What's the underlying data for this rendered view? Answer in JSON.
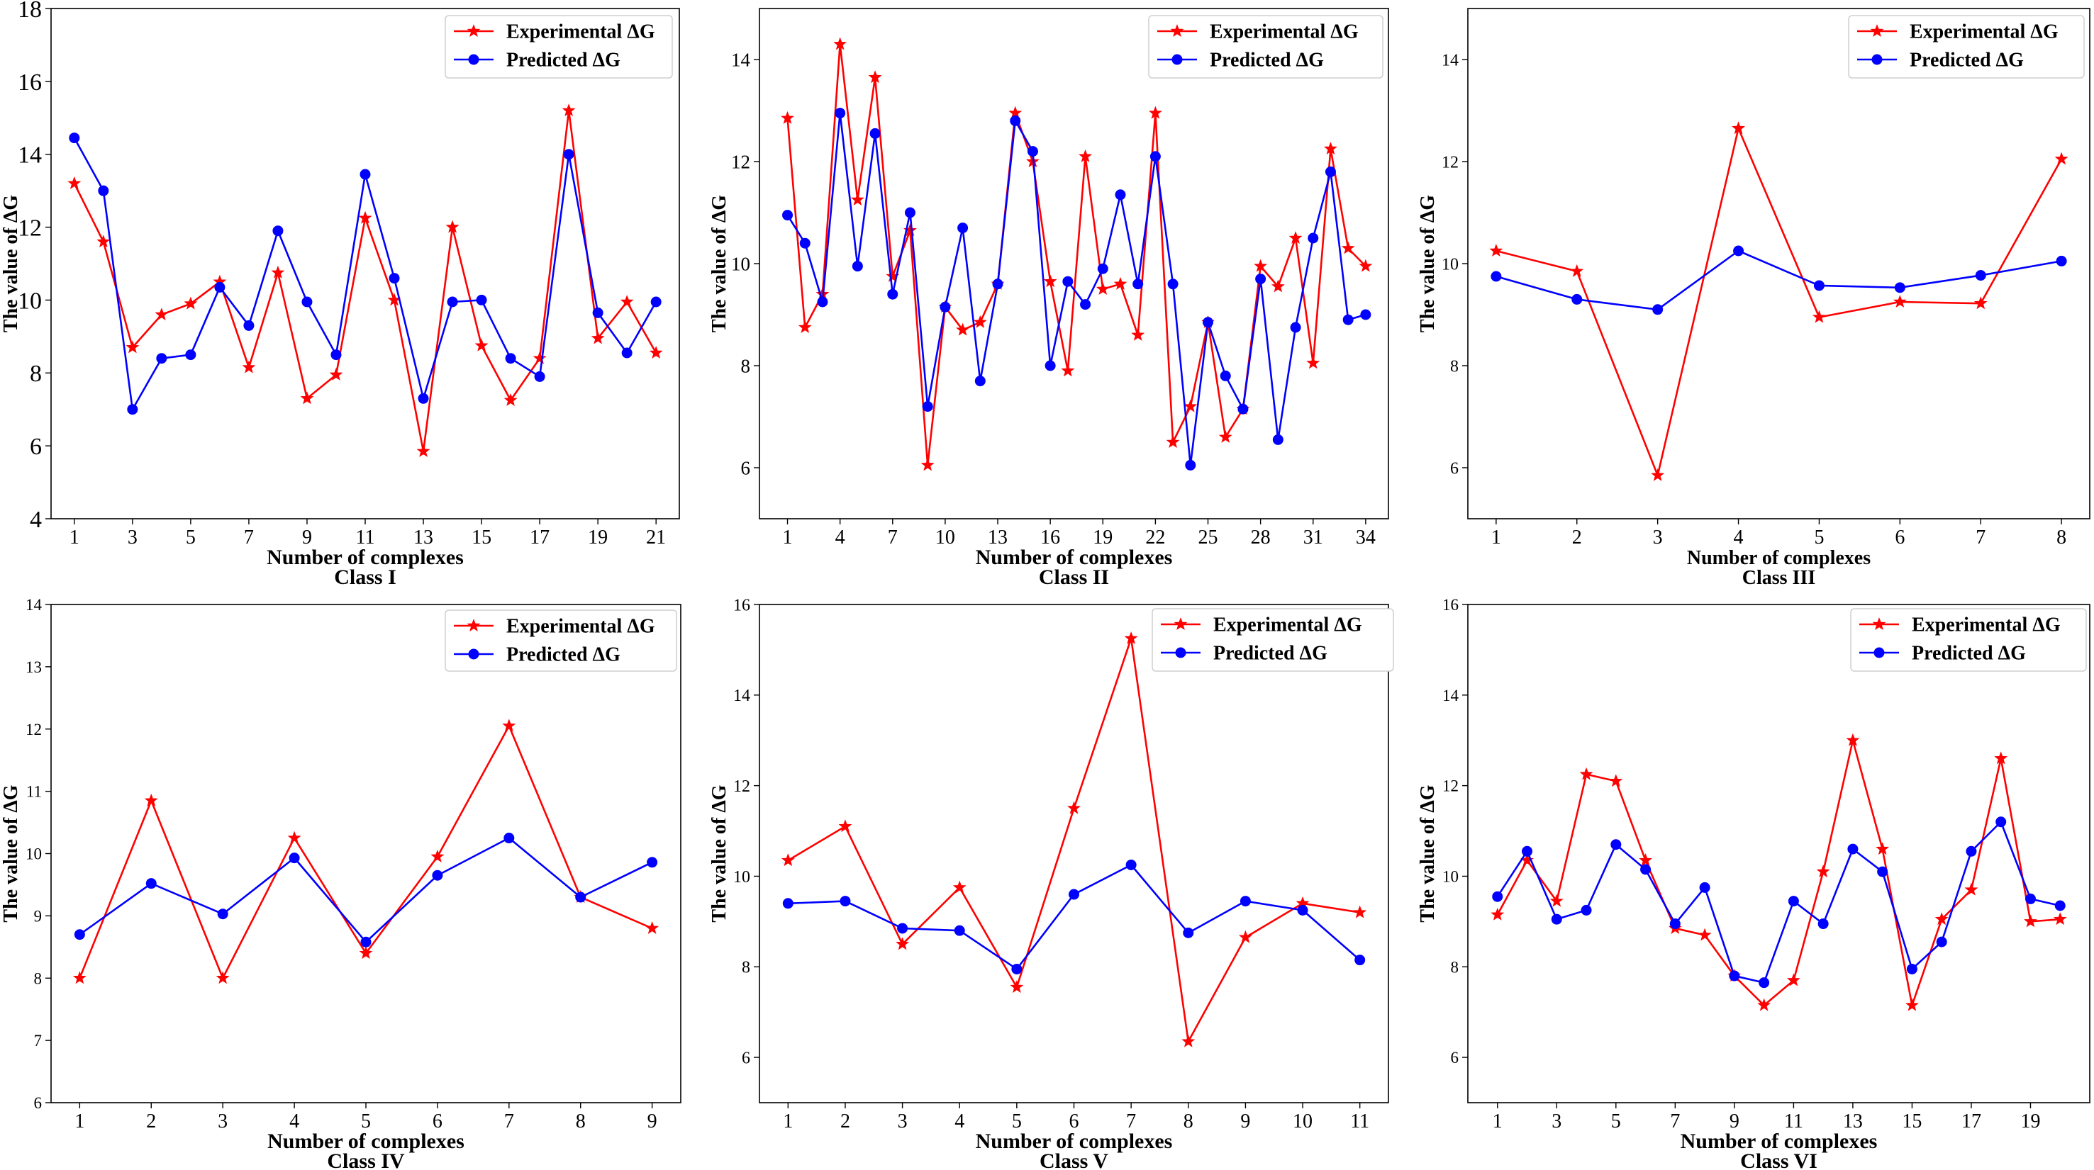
{
  "chart_data": [
    {
      "type": "line",
      "title": "Class I",
      "xlabel": "Number of complexes",
      "ylabel": "The value of ΔG",
      "ylim": [
        4,
        18
      ],
      "xlim": [
        0.2,
        21.8
      ],
      "yticks": [
        4,
        6,
        8,
        10,
        12,
        14,
        16,
        18
      ],
      "xticks": [
        1,
        3,
        5,
        7,
        9,
        11,
        13,
        15,
        17,
        19,
        21
      ],
      "x": [
        1,
        2,
        3,
        4,
        5,
        6,
        7,
        8,
        9,
        10,
        11,
        12,
        13,
        14,
        15,
        16,
        17,
        18,
        19,
        20,
        21
      ],
      "series": [
        {
          "name": "Experimental ΔG",
          "color": "#ff0000",
          "marker": "star",
          "values": [
            13.2,
            11.6,
            8.7,
            9.6,
            9.9,
            10.5,
            8.15,
            10.75,
            7.3,
            7.95,
            12.25,
            10.0,
            5.85,
            12.0,
            8.75,
            7.25,
            8.4,
            15.2,
            8.95,
            9.95,
            8.55
          ]
        },
        {
          "name": "Predicted ΔG",
          "color": "#0000ff",
          "marker": "circle",
          "values": [
            14.45,
            13.0,
            7.0,
            8.4,
            8.5,
            10.35,
            9.3,
            11.9,
            9.95,
            8.5,
            13.45,
            10.6,
            7.3,
            9.95,
            10.0,
            8.4,
            7.9,
            14.0,
            9.65,
            8.55,
            9.95
          ]
        }
      ]
    },
    {
      "type": "line",
      "title": "Class II",
      "xlabel": "Number of complexes",
      "ylabel": "The value of ΔG",
      "ylim": [
        5,
        15
      ],
      "xlim": [
        -0.6,
        35.3
      ],
      "yticks": [
        6,
        8,
        10,
        12,
        14
      ],
      "xticks": [
        1,
        4,
        7,
        10,
        13,
        16,
        19,
        22,
        25,
        28,
        31,
        34
      ],
      "x": [
        1,
        2,
        3,
        4,
        5,
        6,
        7,
        8,
        9,
        10,
        11,
        12,
        13,
        14,
        15,
        16,
        17,
        18,
        19,
        20,
        21,
        22,
        23,
        24,
        25,
        26,
        27,
        28,
        29,
        30,
        31,
        32,
        33,
        34
      ],
      "series": [
        {
          "name": "Experimental ΔG",
          "color": "#ff0000",
          "marker": "star",
          "values": [
            12.85,
            8.75,
            9.4,
            14.3,
            11.25,
            13.65,
            9.75,
            10.65,
            6.05,
            9.15,
            8.7,
            8.85,
            9.6,
            12.95,
            12.0,
            9.65,
            7.9,
            12.1,
            9.5,
            9.6,
            8.6,
            12.95,
            6.5,
            7.2,
            8.85,
            6.6,
            7.15,
            9.95,
            9.55,
            10.5,
            8.05,
            12.25,
            10.3,
            9.95
          ]
        },
        {
          "name": "Predicted ΔG",
          "color": "#0000ff",
          "marker": "circle",
          "values": [
            10.95,
            10.4,
            9.25,
            12.95,
            9.95,
            12.55,
            9.4,
            11.0,
            7.2,
            9.15,
            10.7,
            7.7,
            9.6,
            12.8,
            12.2,
            8.0,
            9.65,
            9.2,
            9.9,
            11.35,
            9.6,
            12.1,
            9.6,
            6.05,
            8.85,
            7.8,
            7.15,
            9.7,
            6.55,
            8.75,
            10.5,
            11.8,
            8.9,
            9.0
          ]
        }
      ]
    },
    {
      "type": "line",
      "title": "Class III",
      "xlabel": "Number of complexes",
      "ylabel": "The value of ΔG",
      "ylim": [
        5,
        15
      ],
      "xlim": [
        0.65,
        8.35
      ],
      "yticks": [
        6,
        8,
        10,
        12,
        14
      ],
      "xticks": [
        1,
        2,
        3,
        4,
        5,
        6,
        7,
        8
      ],
      "x": [
        1,
        2,
        3,
        4,
        5,
        6,
        7,
        8
      ],
      "series": [
        {
          "name": "Experimental ΔG",
          "color": "#ff0000",
          "marker": "star",
          "values": [
            10.25,
            9.85,
            5.85,
            12.65,
            8.95,
            9.25,
            9.22,
            12.05
          ]
        },
        {
          "name": "Predicted ΔG",
          "color": "#0000ff",
          "marker": "circle",
          "values": [
            9.75,
            9.3,
            9.1,
            10.25,
            9.57,
            9.53,
            9.77,
            10.05
          ]
        }
      ]
    },
    {
      "type": "line",
      "title": "Class IV",
      "xlabel": "Number of complexes",
      "ylabel": "The value of ΔG",
      "ylim": [
        6,
        14
      ],
      "xlim": [
        0.6,
        9.4
      ],
      "yticks": [
        6,
        7,
        8,
        9,
        10,
        11,
        12,
        13,
        14
      ],
      "xticks": [
        1,
        2,
        3,
        4,
        5,
        6,
        7,
        8,
        9
      ],
      "x": [
        1,
        2,
        3,
        4,
        5,
        6,
        7,
        8,
        9
      ],
      "series": [
        {
          "name": "Experimental ΔG",
          "color": "#ff0000",
          "marker": "star",
          "values": [
            8.0,
            10.85,
            8.0,
            10.25,
            8.4,
            9.95,
            12.05,
            9.3,
            8.8
          ]
        },
        {
          "name": "Predicted ΔG",
          "color": "#0000ff",
          "marker": "circle",
          "values": [
            8.7,
            9.52,
            9.03,
            9.93,
            8.58,
            9.65,
            10.25,
            9.3,
            9.86
          ]
        }
      ]
    },
    {
      "type": "line",
      "title": "Class V",
      "xlabel": "Number of complexes",
      "ylabel": "The value of ΔG",
      "ylim": [
        5,
        16
      ],
      "xlim": [
        0.5,
        11.5
      ],
      "yticks": [
        6,
        8,
        10,
        12,
        14,
        16
      ],
      "xticks": [
        1,
        2,
        3,
        4,
        5,
        6,
        7,
        8,
        9,
        10,
        11
      ],
      "x": [
        1,
        2,
        3,
        4,
        5,
        6,
        7,
        8,
        9,
        10,
        11
      ],
      "series": [
        {
          "name": "Experimental ΔG",
          "color": "#ff0000",
          "marker": "star",
          "values": [
            10.35,
            11.1,
            8.5,
            9.75,
            7.55,
            11.5,
            15.25,
            6.35,
            8.65,
            9.4,
            9.2
          ]
        },
        {
          "name": "Predicted ΔG",
          "color": "#0000ff",
          "marker": "circle",
          "values": [
            9.4,
            9.45,
            8.85,
            8.8,
            7.95,
            9.6,
            10.25,
            8.75,
            9.45,
            9.25,
            8.15
          ]
        }
      ]
    },
    {
      "type": "line",
      "title": "Class VI",
      "xlabel": "Number of complexes",
      "ylabel": "The value of ΔG",
      "ylim": [
        5,
        16
      ],
      "xlim": [
        0.0,
        21.0
      ],
      "yticks": [
        6,
        8,
        10,
        12,
        14,
        16
      ],
      "xticks": [
        1,
        3,
        5,
        7,
        9,
        11,
        13,
        15,
        17,
        19
      ],
      "x": [
        1,
        2,
        3,
        4,
        5,
        6,
        7,
        8,
        9,
        10,
        11,
        12,
        13,
        14,
        15,
        16,
        17,
        18,
        19,
        20
      ],
      "series": [
        {
          "name": "Experimental ΔG",
          "color": "#ff0000",
          "marker": "star",
          "values": [
            9.15,
            10.35,
            9.45,
            12.25,
            12.1,
            10.35,
            8.85,
            8.7,
            7.8,
            7.15,
            7.7,
            10.1,
            13.0,
            10.6,
            7.15,
            9.05,
            9.7,
            12.6,
            9.0,
            9.05
          ]
        },
        {
          "name": "Predicted ΔG",
          "color": "#0000ff",
          "marker": "circle",
          "values": [
            9.55,
            10.55,
            9.05,
            9.25,
            10.7,
            10.15,
            8.95,
            9.75,
            7.8,
            7.65,
            9.45,
            8.95,
            10.6,
            10.1,
            7.95,
            8.55,
            10.55,
            11.2,
            9.5,
            9.35
          ]
        }
      ]
    }
  ]
}
